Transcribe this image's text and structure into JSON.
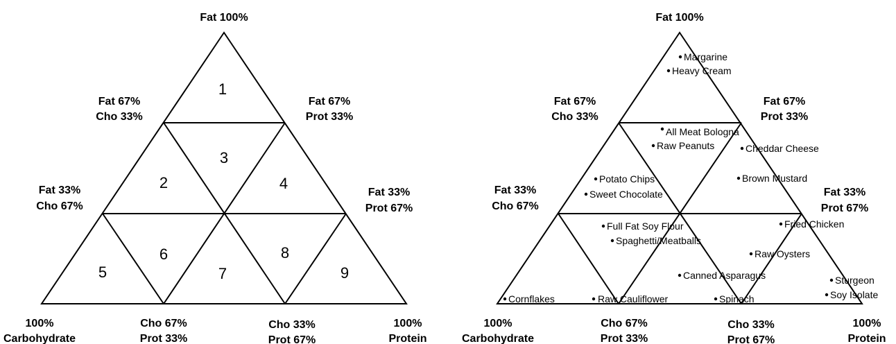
{
  "left_diagram": {
    "vertex_labels": {
      "top": "Fat 100%",
      "upper_left": [
        "Fat 67%",
        "Cho 33%"
      ],
      "upper_right": [
        "Fat 67%",
        "Prot 33%"
      ],
      "mid_left": [
        "Fat 33%",
        "Cho 67%"
      ],
      "mid_right": [
        "Fat 33%",
        "Prot 67%"
      ],
      "bottom_left": [
        "100%",
        "Carbohydrate"
      ],
      "bottom_mid_left": [
        "Cho 67%",
        "Prot 33%"
      ],
      "bottom_mid_right": [
        "Cho 33%",
        "Prot 67%"
      ],
      "bottom_right": [
        "100%",
        "Protein"
      ]
    },
    "region_numbers": [
      "1",
      "2",
      "3",
      "4",
      "5",
      "6",
      "7",
      "8",
      "9"
    ]
  },
  "right_diagram": {
    "vertex_labels": {
      "top": "Fat 100%",
      "upper_left": [
        "Fat 67%",
        "Cho 33%"
      ],
      "upper_right": [
        "Fat 67%",
        "Prot 33%"
      ],
      "mid_left": [
        "Fat 33%",
        "Cho 67%"
      ],
      "mid_right": [
        "Fat 33%",
        "Prot 67%"
      ],
      "bottom_left": [
        "100%",
        "Carbohydrate"
      ],
      "bottom_mid_left": [
        "Cho 67%",
        "Prot 33%"
      ],
      "bottom_mid_right": [
        "Cho 33%",
        "Prot 67%"
      ],
      "bottom_right": [
        "100%",
        "Protein"
      ]
    },
    "foods": [
      "Margarine",
      "Heavy Cream",
      "All Meat Bologna",
      "Raw Peanuts",
      "Cheddar Cheese",
      "Potato Chips",
      "Sweet Chocolate",
      "Brown Mustard",
      "Full Fat Soy Flour",
      "Spaghetti/Meatballs",
      "Fried Chicken",
      "Raw Oysters",
      "Canned Asparagus",
      "Sturgeon",
      "Soy Isolate",
      "Cornflakes",
      "Raw Cauliflower",
      "Spinach"
    ]
  }
}
